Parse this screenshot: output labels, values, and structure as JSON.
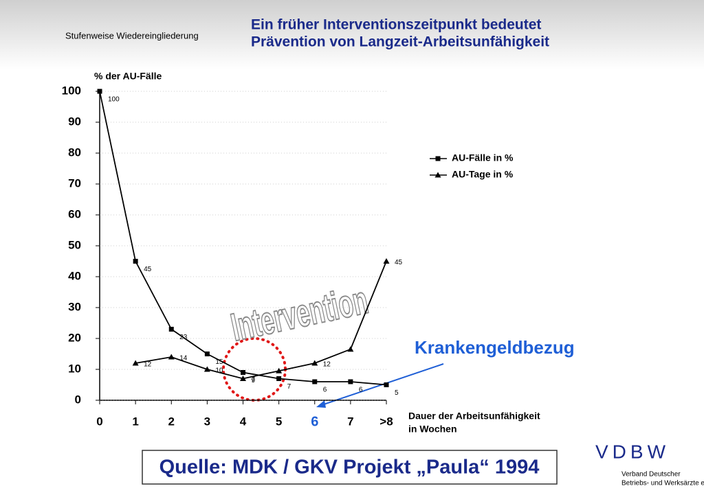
{
  "header": {
    "section": "Stufenweise Wiedereingliederung",
    "title": [
      "Ein früher Interventionszeitpunkt bedeutet",
      "Prävention von Langzeit-Arbeitsunfähigkeit"
    ]
  },
  "chart_data": {
    "type": "line",
    "y_label": "% der AU-Fälle",
    "x_label": [
      "Dauer der Arbeitsunfähigkeit",
      "in Wochen"
    ],
    "categories": [
      "0",
      "1",
      "2",
      "3",
      "4",
      "5",
      "6",
      "7",
      ">8"
    ],
    "highlight_category": "6",
    "highlight_color": "#1f5fd6",
    "series": [
      {
        "name": "AU-Fälle in %",
        "color": "#000000",
        "marker": "square",
        "values": [
          100,
          45,
          23,
          15,
          9,
          7,
          6,
          6,
          5
        ],
        "labeled": [
          true,
          true,
          true,
          true,
          true,
          true,
          true,
          true,
          true
        ]
      },
      {
        "name": "AU-Tage in %",
        "color": "#000000",
        "marker": "triangle",
        "values": [
          null,
          12,
          14,
          10,
          7,
          9.5,
          12,
          16.5,
          45
        ],
        "labeled": [
          false,
          true,
          true,
          true,
          true,
          false,
          true,
          false,
          true
        ]
      }
    ],
    "ylim": [
      0,
      100
    ],
    "yticks": [
      0,
      10,
      20,
      30,
      40,
      50,
      60,
      70,
      80,
      90,
      100
    ],
    "grid": true,
    "annotations": {
      "intervention": "Intervention",
      "phase": "Krankengeldbezug"
    }
  },
  "footer": {
    "source": "Quelle: MDK / GKV Projekt „Paula“ 1994",
    "logo": "VDBW",
    "org": [
      "Verband Deutscher",
      "Betriebs- und Werksärzte e.V."
    ]
  }
}
